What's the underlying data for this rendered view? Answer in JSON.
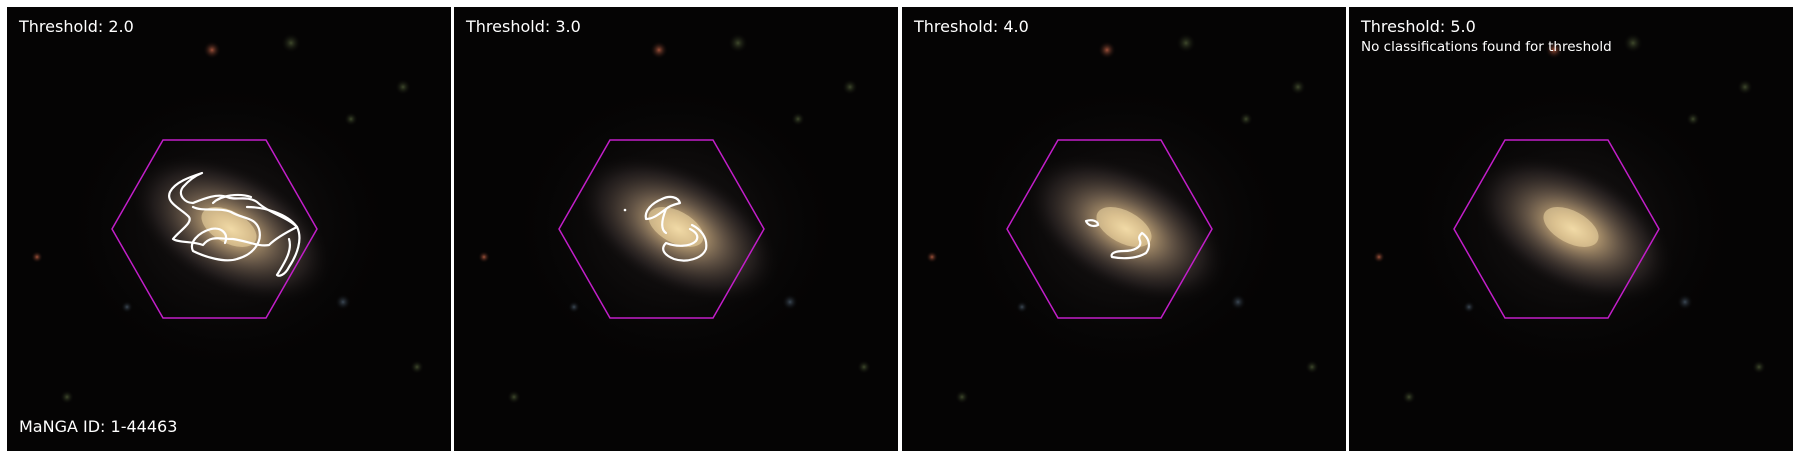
{
  "figure": {
    "manga_id_label": "MaNGA ID: 1-44463",
    "panels": [
      {
        "title": "Threshold: 2.0",
        "note": ""
      },
      {
        "title": "Threshold: 3.0",
        "note": ""
      },
      {
        "title": "Threshold: 4.0",
        "note": ""
      },
      {
        "title": "Threshold: 5.0",
        "note": "No classifications found for threshold"
      }
    ]
  },
  "colors": {
    "background": "#050404",
    "hexagon_outline": "#c21ec9",
    "contour": "#ffffff",
    "label_text": "#ffffff",
    "galaxy_core": "#e8cf9a"
  }
}
